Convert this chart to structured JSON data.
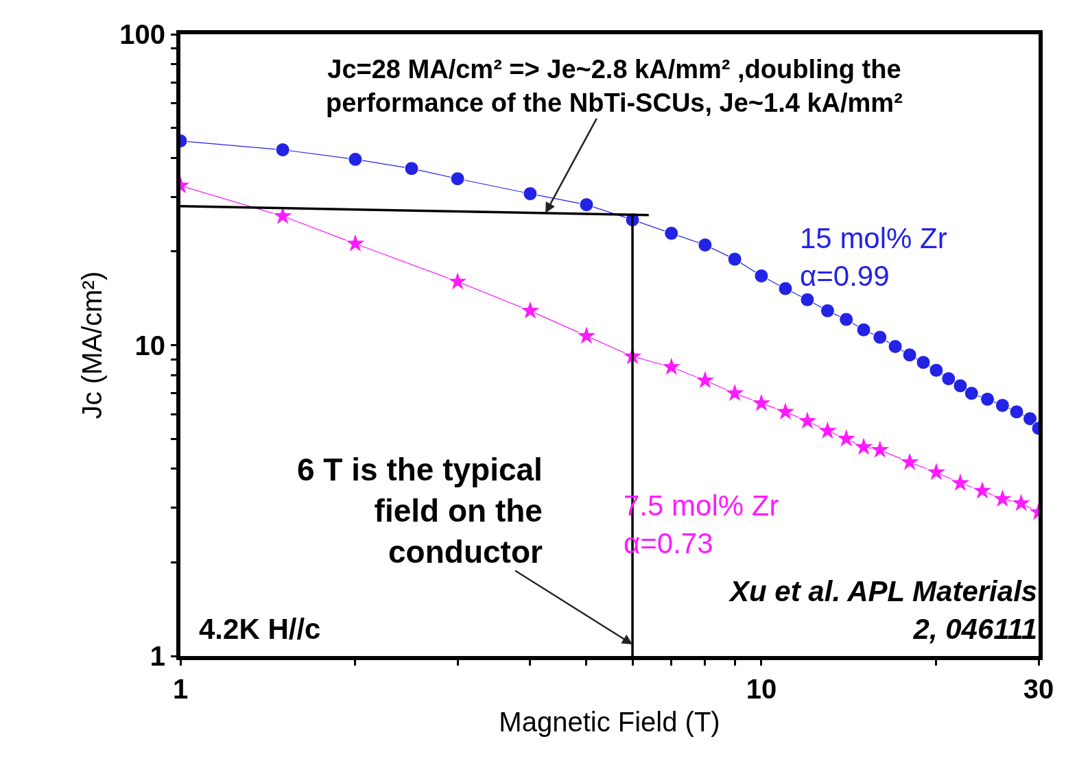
{
  "chart_data": {
    "type": "line",
    "xlabel": "Magnetic Field (T)",
    "ylabel": "Jc (MA/cm²)",
    "log": "xy",
    "xlim": [
      1,
      30
    ],
    "ylim": [
      1,
      100
    ],
    "xticks": [
      1,
      {
        "value": 2,
        "label": null
      },
      {
        "value": 3,
        "label": null
      },
      {
        "value": 4,
        "label": null
      },
      {
        "value": 5,
        "label": null
      },
      {
        "value": 6,
        "label": null
      },
      {
        "value": 7,
        "label": null
      },
      {
        "value": 8,
        "label": null
      },
      {
        "value": 9,
        "label": null
      },
      10,
      {
        "value": 20,
        "label": null
      },
      30
    ],
    "yticks": [
      1,
      {
        "value": 2,
        "label": null
      },
      {
        "value": 3,
        "label": null
      },
      {
        "value": 4,
        "label": null
      },
      {
        "value": 5,
        "label": null
      },
      {
        "value": 6,
        "label": null
      },
      {
        "value": 7,
        "label": null
      },
      {
        "value": 8,
        "label": null
      },
      {
        "value": 9,
        "label": null
      },
      10,
      {
        "value": 20,
        "label": null
      },
      {
        "value": 30,
        "label": null
      },
      {
        "value": 40,
        "label": null
      },
      {
        "value": 50,
        "label": null
      },
      {
        "value": 60,
        "label": null
      },
      {
        "value": 70,
        "label": null
      },
      {
        "value": 80,
        "label": null
      },
      {
        "value": 90,
        "label": null
      },
      100
    ],
    "legend": false,
    "series": [
      {
        "name": "15 mol% Zr\nα=0.99",
        "color": "#2323e6",
        "marker": "circle",
        "line_style": "solid",
        "x": [
          1,
          1.5,
          2,
          2.5,
          3,
          4,
          5,
          6,
          7,
          8,
          9,
          10,
          11,
          12,
          13,
          14,
          15,
          16,
          17,
          18,
          19,
          20,
          21,
          22,
          23,
          24.5,
          26,
          27.5,
          29,
          30
        ],
        "values": [
          45.4,
          42.5,
          39.6,
          37,
          34.3,
          30.7,
          28.3,
          25.3,
          22.9,
          21,
          18.9,
          16.7,
          15.2,
          14.0,
          12.9,
          12.1,
          11.2,
          10.6,
          9.9,
          9.3,
          8.8,
          8.3,
          7.8,
          7.4,
          7.0,
          6.7,
          6.4,
          6.1,
          5.8,
          5.4
        ]
      },
      {
        "name": "7.5 mol% Zr\nα=0.73",
        "color": "#ff1aff",
        "marker": "star",
        "line_style": "solid",
        "x": [
          1,
          1.5,
          2,
          3,
          4,
          5,
          6,
          7,
          8,
          9,
          10,
          11,
          12,
          13,
          14,
          15,
          16,
          18,
          20,
          22,
          24,
          26,
          28,
          30
        ],
        "values": [
          32.6,
          26,
          21.2,
          16,
          12.9,
          10.7,
          9.2,
          8.5,
          7.7,
          7.0,
          6.5,
          6.1,
          5.7,
          5.3,
          5.0,
          4.7,
          4.6,
          4.2,
          3.9,
          3.6,
          3.4,
          3.2,
          3.1,
          2.9
        ]
      },
      {
        "color": "#000000",
        "marker": "none",
        "line_style": "solid",
        "x": [
          1,
          6.4
        ],
        "values": [
          28,
          26.2
        ]
      },
      {
        "color": "#000000",
        "marker": "none",
        "line_style": "solid",
        "x": [
          6,
          6
        ],
        "values": [
          1,
          26
        ]
      }
    ],
    "annotations": [
      {
        "text": "Jc=28 MA/cm² => Je~2.8 kA/mm² ,doubling the\nperformance of the NbTi-SCUs, Je~1.4 kA/mm²",
        "x": 4.25,
        "y": 26.6
      },
      {
        "text": "6 T is the typical\nfield on the\nconductor",
        "x": 6,
        "y": 1.09
      },
      "4.2K H//c",
      "Xu et al. APL Materials\n2, 046111"
    ]
  }
}
